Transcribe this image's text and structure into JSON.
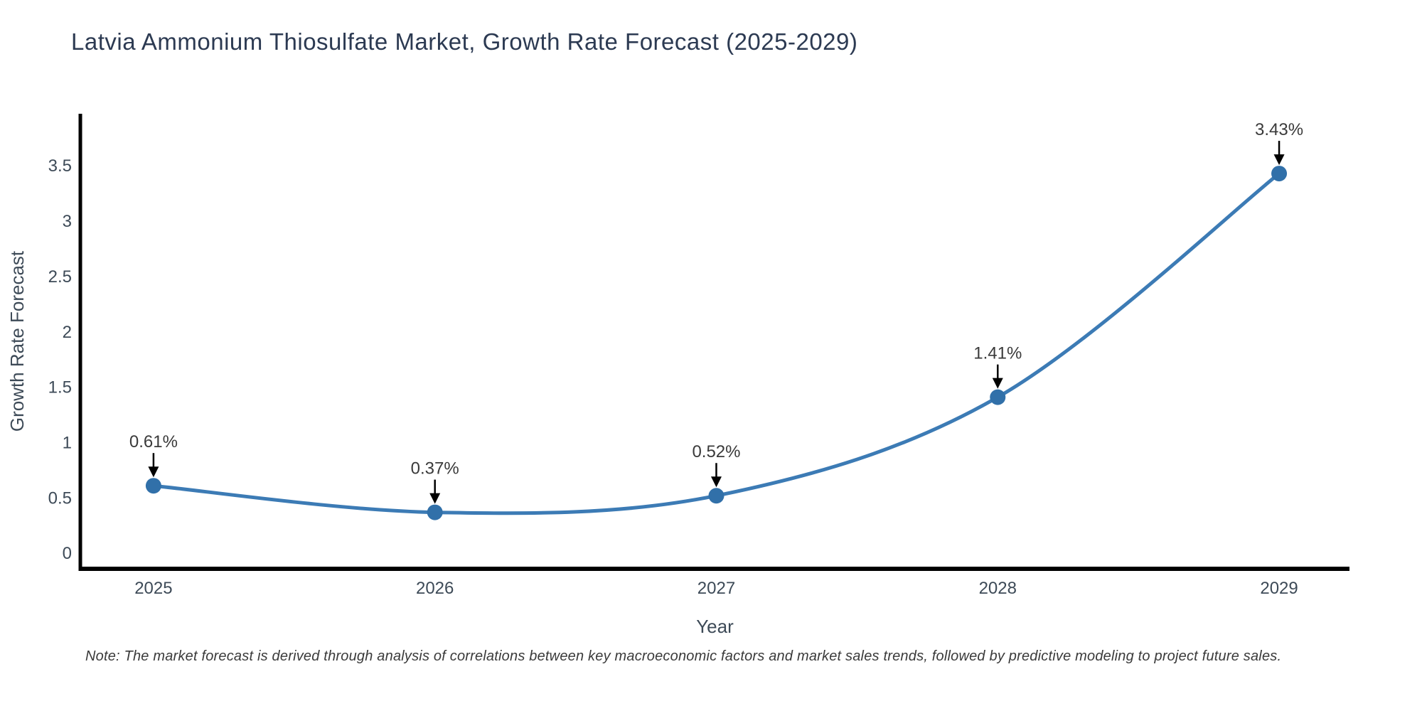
{
  "title": "Latvia Ammonium Thiosulfate Market, Growth Rate Forecast (2025-2029)",
  "note": "Note: The market forecast is derived through analysis of correlations between key macroeconomic factors and market sales trends, followed by predictive modeling to project future sales.",
  "chart_data": {
    "type": "line",
    "title": "Latvia Ammonium Thiosulfate Market, Growth Rate Forecast (2025-2029)",
    "xlabel": "Year",
    "ylabel": "Growth Rate Forecast",
    "x": [
      2025,
      2026,
      2027,
      2028,
      2029
    ],
    "values": [
      0.61,
      0.37,
      0.52,
      1.41,
      3.43
    ],
    "point_labels": [
      "0.61%",
      "0.37%",
      "0.52%",
      "1.41%",
      "3.43%"
    ],
    "xtick_labels": [
      "2025",
      "2026",
      "2027",
      "2028",
      "2029"
    ],
    "yticks": [
      0,
      0.5,
      1,
      1.5,
      2,
      2.5,
      3,
      3.5
    ],
    "ytick_labels": [
      "0",
      "0.5",
      "1",
      "1.5",
      "2",
      "2.5",
      "3",
      "3.5"
    ],
    "xlim": [
      2024.74,
      2029.25
    ],
    "ylim": [
      -0.14,
      3.97
    ],
    "grid": false,
    "legend": "none",
    "line_color": "#3c7bb5",
    "marker_color": "#3170a9",
    "axis_color": "#000000",
    "tick_label_color": "#3d4a57",
    "axis_label_color": "#3d4a57",
    "annotation_text_color": "#3a3a3a",
    "annotation_arrow_color": "#000000"
  }
}
